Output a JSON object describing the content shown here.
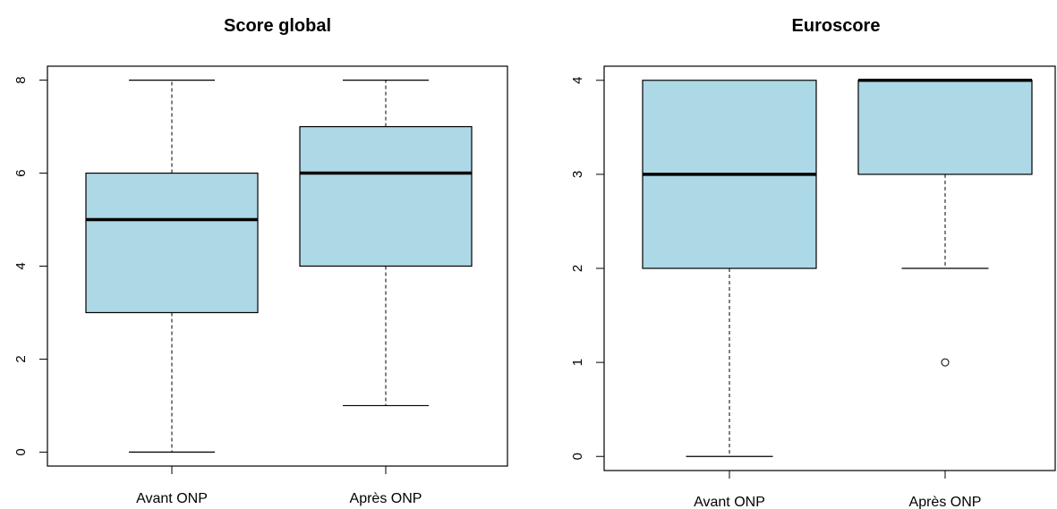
{
  "colors": {
    "box_fill": "#add8e6",
    "stroke": "#000000"
  },
  "chart_data": [
    {
      "type": "boxplot",
      "title": "Score global",
      "xlabel": "",
      "ylabel": "",
      "ylim": [
        -0.3,
        8.3
      ],
      "yticks": [
        0,
        2,
        4,
        6,
        8
      ],
      "categories": [
        "Avant ONP",
        "Après ONP"
      ],
      "boxes": [
        {
          "category": "Avant ONP",
          "whisker_low": 0,
          "q1": 3,
          "median": 5,
          "q3": 6,
          "whisker_high": 8,
          "outliers": []
        },
        {
          "category": "Après ONP",
          "whisker_low": 1,
          "q1": 4,
          "median": 6,
          "q3": 7,
          "whisker_high": 8,
          "outliers": []
        }
      ]
    },
    {
      "type": "boxplot",
      "title": "Euroscore",
      "xlabel": "",
      "ylabel": "",
      "ylim": [
        -0.15,
        4.15
      ],
      "yticks": [
        0,
        1,
        2,
        3,
        4
      ],
      "categories": [
        "Avant ONP",
        "Après ONP"
      ],
      "boxes": [
        {
          "category": "Avant ONP",
          "whisker_low": 0,
          "q1": 2,
          "median": 3,
          "q3": 4,
          "whisker_high": 4,
          "outliers": []
        },
        {
          "category": "Après ONP",
          "whisker_low": 2,
          "q1": 3,
          "median": 4,
          "q3": 4,
          "whisker_high": 4,
          "outliers": [
            1
          ]
        }
      ]
    }
  ]
}
